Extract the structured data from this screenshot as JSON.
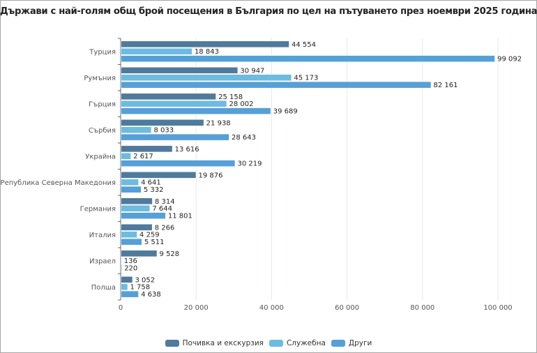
{
  "chart_data": {
    "type": "bar",
    "orientation": "horizontal",
    "title": "Държави с най-голям общ брой посещения в България по цел на пътуването през ноември 2025 година",
    "xlabel": "",
    "ylabel": "",
    "xlim": [
      0,
      100000
    ],
    "x_ticks": [
      0,
      20000,
      40000,
      60000,
      80000,
      100000
    ],
    "x_tick_labels": [
      "0",
      "20 000",
      "40 000",
      "60 000",
      "80 000",
      "100 000"
    ],
    "grid": true,
    "legend_position": "bottom",
    "categories": [
      "Турция",
      "Румъния",
      "Гърция",
      "Сърбия",
      "Украйна",
      "Република Северна Македония",
      "Германия",
      "Италия",
      "Израел",
      "Полша"
    ],
    "series": [
      {
        "name": "Почивка и екскурзия",
        "color": "#4f7a9c",
        "values": [
          44554,
          30947,
          25158,
          21938,
          13616,
          19876,
          8314,
          8266,
          9528,
          3052
        ],
        "labels": [
          "44 554",
          "30 947",
          "25 158",
          "21 938",
          "13 616",
          "19 876",
          "8 314",
          "8 266",
          "9 528",
          "3 052"
        ]
      },
      {
        "name": "Служебна",
        "color": "#6dbbe0",
        "values": [
          18843,
          45173,
          28002,
          8033,
          2617,
          4641,
          7644,
          4259,
          136,
          1758
        ],
        "labels": [
          "18 843",
          "45 173",
          "28 002",
          "8 033",
          "2 617",
          "4 641",
          "7 644",
          "4 259",
          "136",
          "1 758"
        ]
      },
      {
        "name": "Други",
        "color": "#56a0d7",
        "values": [
          99092,
          82161,
          39689,
          28643,
          30219,
          5332,
          11801,
          5511,
          220,
          4638
        ],
        "labels": [
          "99 092",
          "82 161",
          "39 689",
          "28 643",
          "30 219",
          "5 332",
          "11 801",
          "5 511",
          "220",
          "4 638"
        ]
      }
    ]
  }
}
